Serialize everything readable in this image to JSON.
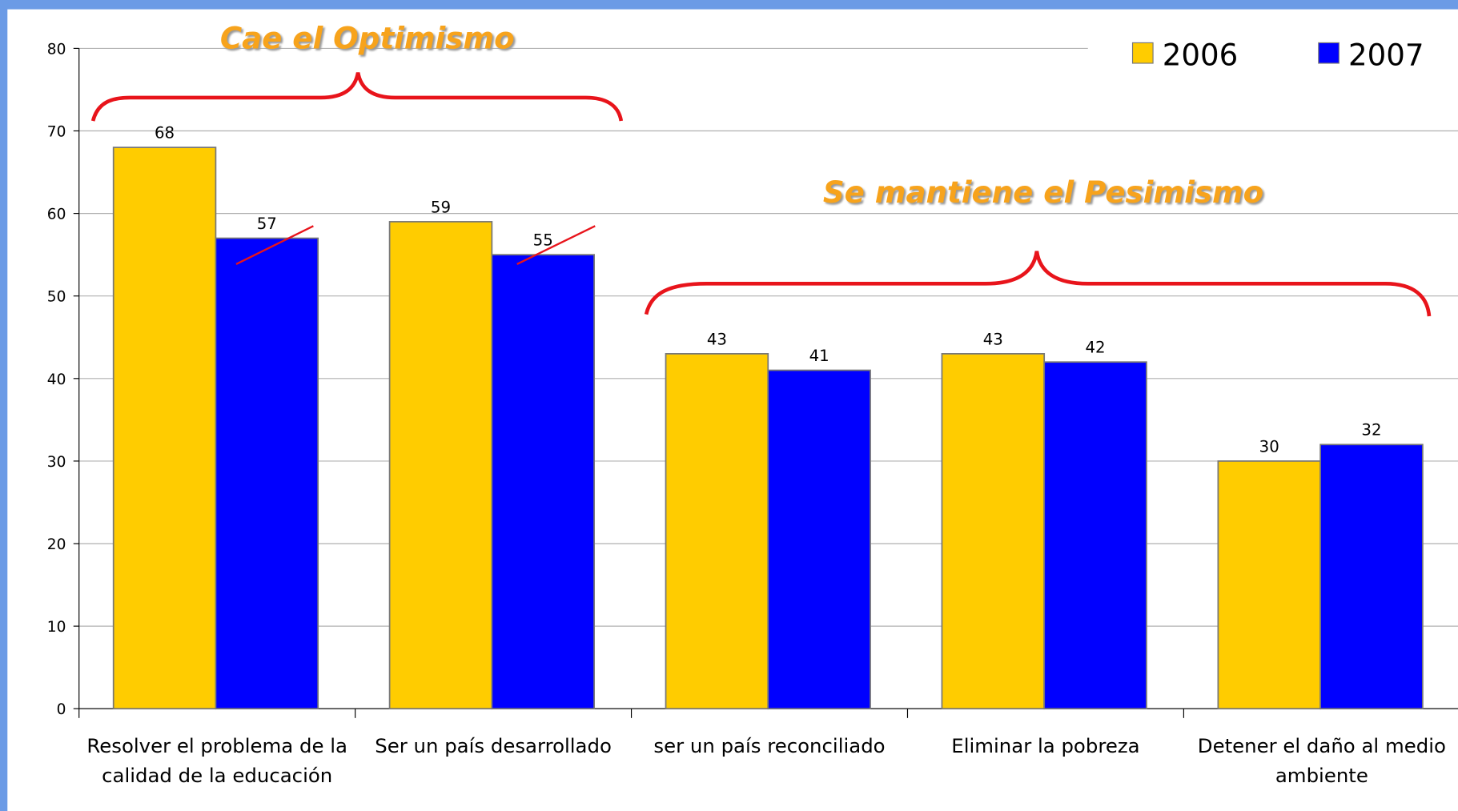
{
  "chart_data": {
    "type": "bar",
    "annotations": [
      "Cae el Optimismo",
      "Se mantiene el Pesimismo"
    ],
    "categories": [
      "Resolver el problema de la calidad de la educación",
      "Ser un país desarrollado",
      "ser un país reconciliado",
      "Eliminar la pobreza",
      "Detener el daño al medio ambiente"
    ],
    "series": [
      {
        "name": "2006",
        "color": "#ffcc00",
        "values": [
          68,
          59,
          43,
          43,
          30
        ]
      },
      {
        "name": "2007",
        "color": "#0000ff",
        "values": [
          57,
          55,
          41,
          42,
          32
        ]
      }
    ],
    "ylim": [
      0,
      80
    ],
    "yticks": [
      0,
      10,
      20,
      30,
      40,
      50,
      60,
      70,
      80
    ],
    "grid": true,
    "legend": "top-right"
  }
}
